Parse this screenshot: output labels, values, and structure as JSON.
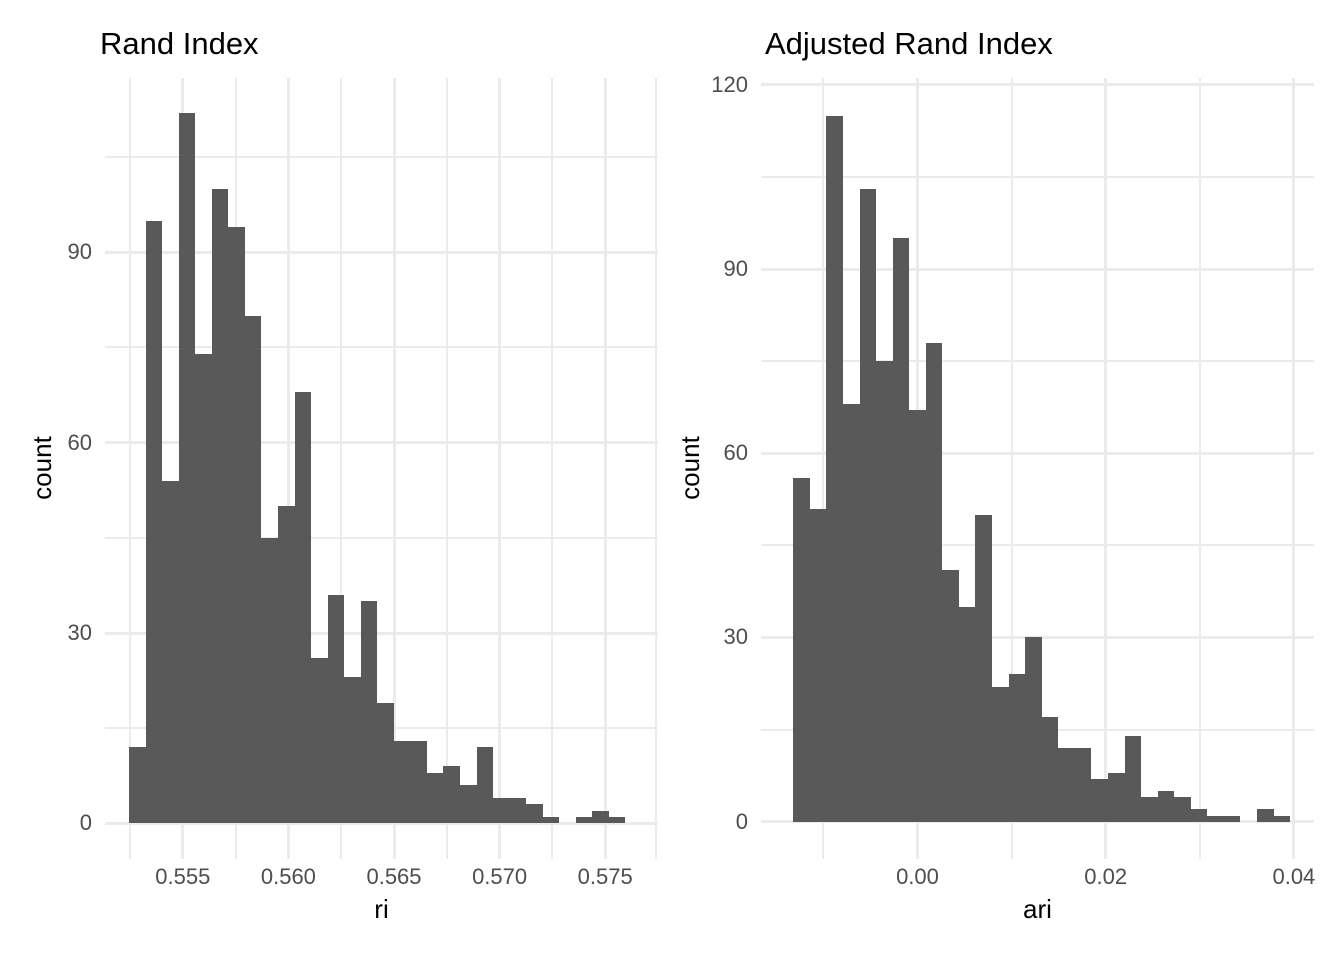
{
  "colors": {
    "bar_fill": "#595959",
    "gridline": "#ebebeb",
    "tick_label": "#4d4d4d",
    "title_text": "#000000",
    "background": "#ffffff"
  },
  "chart_data": [
    {
      "type": "bar",
      "subtype": "histogram",
      "title": "Rand Index",
      "xlabel": "ri",
      "ylabel": "count",
      "n_total": 1000,
      "bin_start": 0.552453,
      "bin_width": 0.0007836,
      "counts": [
        12,
        95,
        54,
        112,
        74,
        100,
        94,
        80,
        45,
        50,
        68,
        26,
        36,
        23,
        35,
        19,
        13,
        13,
        8,
        9,
        6,
        12,
        4,
        4,
        3,
        1,
        0,
        1,
        2,
        1
      ],
      "xlim": [
        0.551316,
        0.5775
      ],
      "ylim": [
        -5.61,
        117.47
      ],
      "x_ticks": {
        "values": [
          0.555,
          0.56,
          0.565,
          0.57,
          0.575
        ],
        "labels": [
          "0.555",
          "0.560",
          "0.565",
          "0.570",
          "0.575"
        ]
      },
      "x_minor": [
        0.5525,
        0.5575,
        0.5625,
        0.5675,
        0.5725,
        0.5775
      ],
      "y_ticks": {
        "values": [
          0,
          30,
          60,
          90
        ],
        "labels": [
          "0",
          "30",
          "60",
          "90"
        ]
      },
      "y_minor": [
        15,
        45,
        75,
        105
      ],
      "grid": true,
      "legend": "none"
    },
    {
      "type": "bar",
      "subtype": "histogram",
      "title": "Adjusted Rand Index",
      "xlabel": "ari",
      "ylabel": "count",
      "n_total": 1000,
      "bin_start": -0.013199,
      "bin_width": 0.00176,
      "counts": [
        56,
        51,
        115,
        68,
        103,
        75,
        95,
        67,
        78,
        41,
        35,
        50,
        22,
        24,
        30,
        17,
        12,
        12,
        7,
        8,
        14,
        4,
        5,
        4,
        2,
        1,
        1,
        0,
        2,
        1
      ],
      "xlim": [
        -0.016631,
        0.042136
      ],
      "ylim": [
        -6.08,
        121.12
      ],
      "x_ticks": {
        "values": [
          0.0,
          0.02,
          0.04
        ],
        "labels": [
          "0.00",
          "0.02",
          "0.04"
        ]
      },
      "x_minor": [
        -0.01,
        0.01,
        0.03
      ],
      "y_ticks": {
        "values": [
          0,
          30,
          60,
          90,
          120
        ],
        "labels": [
          "0",
          "30",
          "60",
          "90",
          "120"
        ]
      },
      "y_minor": [
        15,
        45,
        75,
        105
      ],
      "grid": true,
      "legend": "none"
    }
  ]
}
